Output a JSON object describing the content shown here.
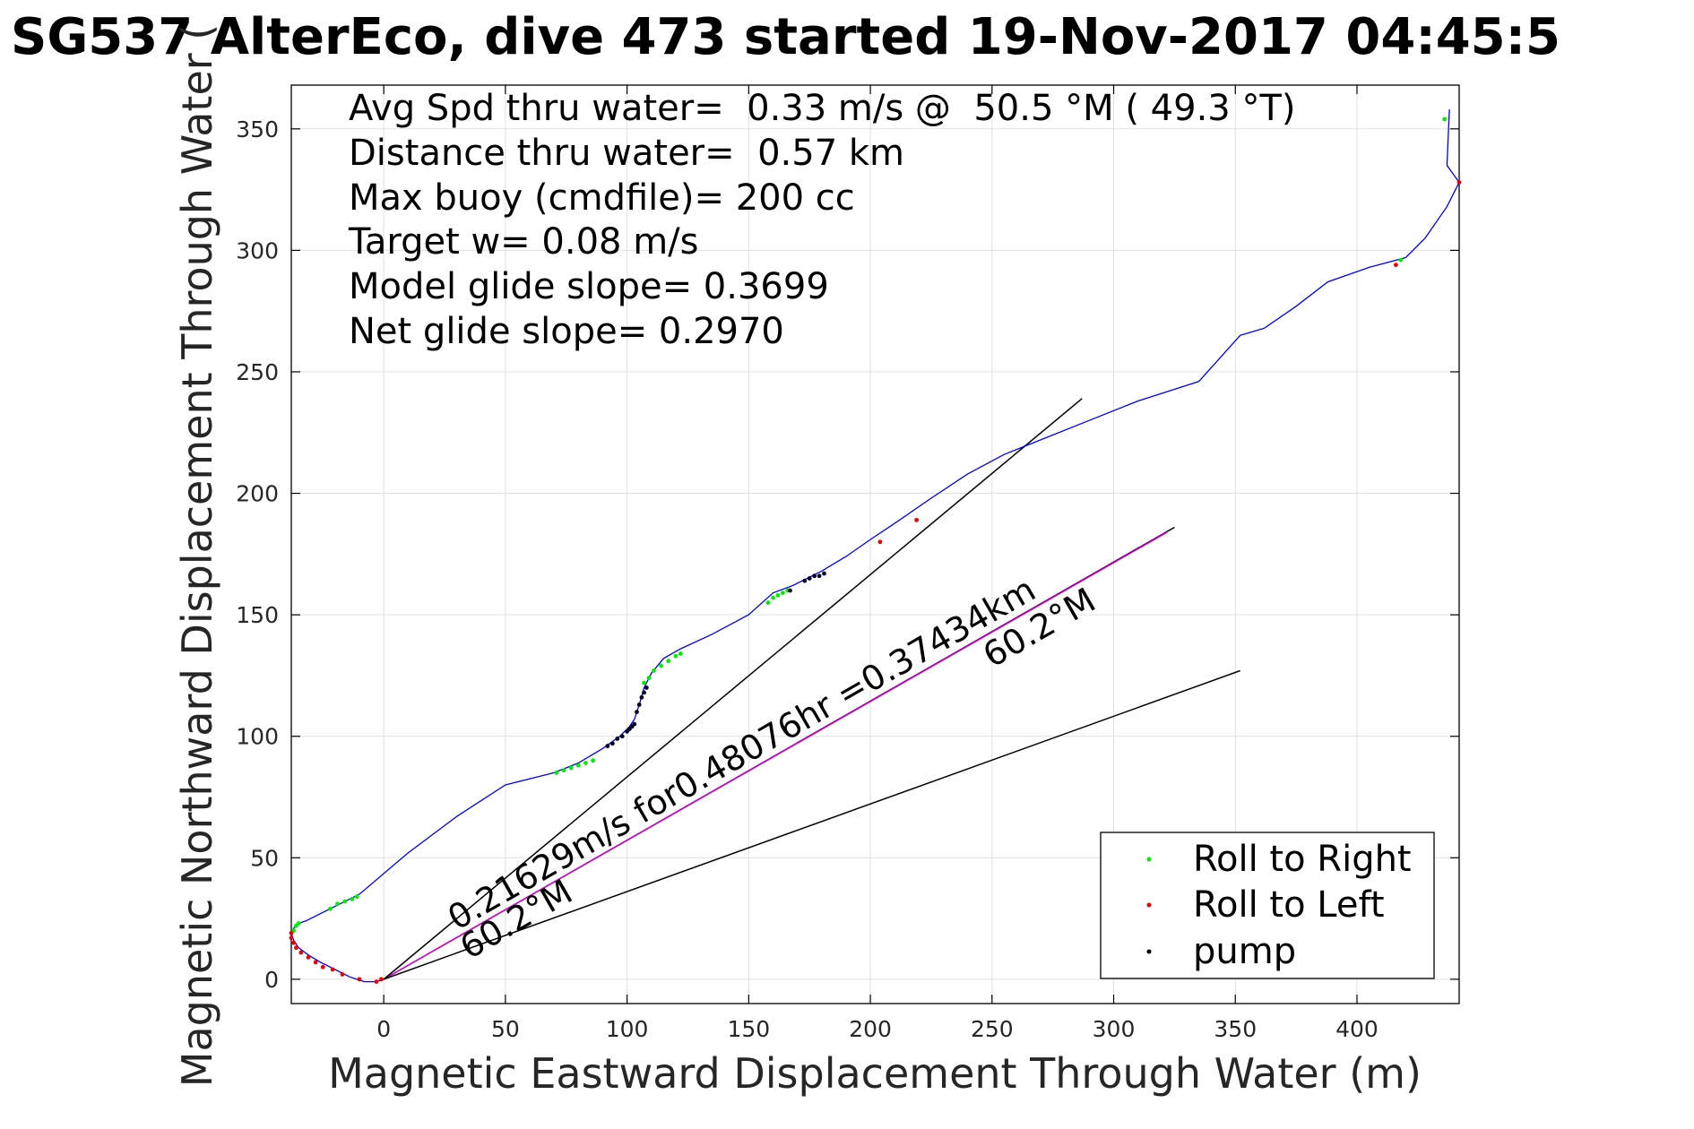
{
  "chart_data": {
    "type": "line",
    "title": "SG537 AlterEco, dive 473 started 19-Nov-2017 04:45:5",
    "xlabel": "Magnetic Eastward Displacement Through Water (m)",
    "ylabel": "Magnetic Northward Displacement Through Water (",
    "xlim": [
      -38,
      442
    ],
    "ylim": [
      -10,
      368
    ],
    "xticks": [
      0,
      50,
      100,
      150,
      200,
      250,
      300,
      350,
      400
    ],
    "yticks": [
      0,
      50,
      100,
      150,
      200,
      250,
      300,
      350
    ],
    "grid": true,
    "annotations": [
      "Avg Spd thru water=  0.33 m/s @  50.5 °M ( 49.3 °T)",
      "Distance thru water=  0.57 km",
      "Max buoy (cmdfile)= 200 cc",
      "Target w= 0.08 m/s",
      "Model glide slope= 0.3699",
      "Net glide slope= 0.2970"
    ],
    "rotated_labels": [
      {
        "text": "0.21629m/s for0.48076hr =0.37434km",
        "x": 30,
        "y": 20,
        "angle_deg": 29.9
      },
      {
        "text": "60.2°M",
        "x": 35,
        "y": 8,
        "angle_deg": 29.9
      },
      {
        "text": "60.2°M",
        "x": 250,
        "y": 128,
        "angle_deg": 29.9
      }
    ],
    "legend": {
      "position": "bottom-right",
      "entries": [
        {
          "label": "Roll to Right",
          "color": "#00ee00"
        },
        {
          "label": "Roll to Left",
          "color": "#ee0000"
        },
        {
          "label": "pump",
          "color": "#000000"
        }
      ]
    },
    "track": {
      "color": "#0000ee",
      "x": [
        0,
        -3,
        -8,
        -14,
        -20,
        -26,
        -31,
        -35,
        -37,
        -38,
        -37,
        -35,
        -32,
        -22,
        -10,
        10,
        30,
        50,
        70,
        80,
        90,
        97,
        101,
        103,
        105,
        107,
        110,
        115,
        122,
        135,
        150,
        160,
        168,
        172,
        180,
        190,
        200,
        212,
        225,
        240,
        255,
        270,
        290,
        310,
        335,
        352,
        362,
        375,
        388,
        405,
        420,
        428,
        437,
        442,
        437,
        438
      ],
      "y": [
        0,
        -1,
        -1,
        1,
        4,
        7,
        10,
        13,
        16,
        19,
        21,
        23,
        24,
        29,
        35,
        52,
        67,
        80,
        85,
        89,
        95,
        100,
        104,
        107,
        113,
        120,
        126,
        132,
        136,
        142,
        150,
        159,
        162,
        164,
        168,
        174,
        181,
        189,
        198,
        208,
        216,
        222,
        230,
        238,
        246,
        265,
        268,
        277,
        287,
        293,
        297,
        305,
        318,
        328,
        335,
        358
      ]
    },
    "series": [
      {
        "name": "heading line 0.37434km",
        "color": "#000000",
        "x": [
          0,
          325
        ],
        "y": [
          0,
          186
        ]
      },
      {
        "name": "depth-averaged current",
        "color": "#dd00dd",
        "x": [
          0,
          322
        ],
        "y": [
          0,
          184
        ]
      },
      {
        "name": "upper bound line",
        "color": "#000000",
        "x": [
          0,
          287
        ],
        "y": [
          0,
          239
        ]
      },
      {
        "name": "lower bound line",
        "color": "#000000",
        "x": [
          0,
          352
        ],
        "y": [
          0,
          127
        ]
      }
    ],
    "markers": {
      "roll_right": {
        "color": "#00ee00",
        "x": [
          -37,
          -36,
          -35,
          -22,
          -19,
          -16,
          -13,
          -11,
          71,
          74,
          77,
          80,
          83,
          86,
          107,
          109,
          111,
          114,
          117,
          120,
          122,
          158,
          160,
          162,
          164,
          166,
          418,
          436
        ],
        "y": [
          20,
          22,
          23,
          29,
          31,
          32,
          33,
          34,
          85,
          86,
          87,
          88,
          89,
          90,
          122,
          124,
          127,
          129,
          131,
          133,
          134,
          155,
          157,
          158,
          159,
          160,
          296,
          354
        ]
      },
      "roll_left": {
        "color": "#ee0000",
        "x": [
          -1,
          -3,
          -10,
          -17,
          -21,
          -25,
          -28,
          -31,
          -34,
          -36,
          -37,
          -38,
          -38,
          204,
          219,
          442,
          416
        ],
        "y": [
          0,
          -1,
          0,
          2,
          4,
          5,
          7,
          9,
          11,
          13,
          15,
          17,
          19,
          180,
          189,
          328,
          294
        ]
      },
      "pump": {
        "color": "#000022",
        "x": [
          92,
          94,
          96,
          98,
          100,
          101,
          102,
          103,
          104,
          105,
          106,
          107,
          108,
          173,
          175,
          177,
          179,
          181,
          167
        ],
        "y": [
          96,
          97,
          99,
          100,
          102,
          103,
          104,
          105,
          110,
          113,
          116,
          118,
          120,
          164,
          165,
          166,
          166,
          167,
          160
        ]
      }
    }
  }
}
